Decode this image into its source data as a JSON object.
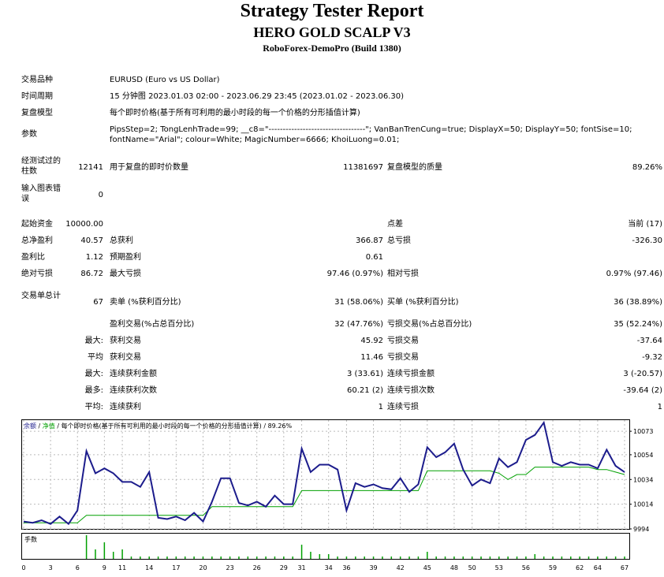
{
  "header": {
    "title": "Strategy Tester Report",
    "subtitle": "HERO GOLD SCALP V3",
    "build": "RoboForex-DemoPro (Build 1380)"
  },
  "info": {
    "symbol_label": "交易品种",
    "symbol_value": "EURUSD (Euro vs US Dollar)",
    "period_label": "时间周期",
    "period_value": "15 分钟图 2023.01.03 02:00 - 2023.06.29 23:45 (2023.01.02 - 2023.06.30)",
    "model_label": "复盘模型",
    "model_value": "每个即时价格(基于所有可利用的最小时段的每一个价格的分形插值计算)",
    "params_label": "参数",
    "params_value": "PipsStep=2; TongLenhTrade=99; __c8=\"----------------------------------\"; VanBanTrenCung=true; DisplayX=50; DisplayY=50; fontSise=10; fontName=\"Arial\"; colour=White; MagicNumber=6666; KhoiLuong=0.01;"
  },
  "stats": {
    "bars_label": "经测试过的柱数",
    "bars_value": "12141",
    "ticks_label": "用于复盘的即时价数量",
    "ticks_value": "11381697",
    "quality_label": "复盘模型的质量",
    "quality_value": "89.26%",
    "errors_label": "输入图表错误",
    "errors_value": "0",
    "deposit_label": "起始资金",
    "deposit_value": "10000.00",
    "spread_label": "点差",
    "spread_value": "当前 (17)",
    "net_label": "总净盈利",
    "net_value": "40.57",
    "gross_profit_label": "总获利",
    "gross_profit_value": "366.87",
    "gross_loss_label": "总亏损",
    "gross_loss_value": "-326.30",
    "pf_label": "盈利比",
    "pf_value": "1.12",
    "expected_label": "预期盈利",
    "expected_value": "0.61",
    "abs_dd_label": "绝对亏损",
    "abs_dd_value": "86.72",
    "max_dd_label": "最大亏损",
    "max_dd_value": "97.46 (0.97%)",
    "rel_dd_label": "相对亏损",
    "rel_dd_value": "0.97% (97.46)",
    "trades_label": "交易单总计",
    "trades_value": "67",
    "short_label": "卖单 (%获利百分比)",
    "short_value": "31 (58.06%)",
    "long_label": "买单 (%获利百分比)",
    "long_value": "36 (38.89%)",
    "profit_trades_label": "盈利交易(%占总百分比)",
    "profit_trades_value": "32 (47.76%)",
    "loss_trades_label": "亏损交易(%占总百分比)",
    "loss_trades_value": "35 (52.24%)",
    "largest_prefix": "最大:",
    "largest_profit_label": "获利交易",
    "largest_profit_value": "45.92",
    "largest_loss_label": "亏损交易",
    "largest_loss_value": "-37.64",
    "average_prefix": "平均",
    "average_profit_label": "获利交易",
    "average_profit_value": "11.46",
    "average_loss_label": "亏损交易",
    "average_loss_value": "-9.32",
    "max_consec_prefix": "最大:",
    "max_consec_wins_label": "连续获利金额",
    "max_consec_wins_value": "3 (33.61)",
    "max_consec_losses_label": "连续亏损金额",
    "max_consec_losses_value": "3 (-20.57)",
    "most_prefix": "最多:",
    "most_consec_profit_label": "连续获利次数",
    "most_consec_profit_value": "60.21 (2)",
    "most_consec_loss_label": "连续亏损次数",
    "most_consec_loss_value": "-39.64 (2)",
    "avg_consec_prefix": "平均:",
    "avg_consec_wins_label": "连续获利",
    "avg_consec_wins_value": "1",
    "avg_consec_losses_label": "连续亏损",
    "avg_consec_losses_value": "1"
  },
  "chart_data": {
    "type": "line",
    "legend_parts": [
      "余额",
      "净值",
      "每个即时价格(基于所有可利用的最小时段的每一个价格的分形插值计算)",
      "89.26%"
    ],
    "legend_colors": [
      "#1c1c8c",
      "#00a000",
      "#000000",
      "#000000"
    ],
    "lot_label": "手数",
    "ylim": [
      9994,
      10082
    ],
    "y_ticks": [
      9994,
      10014,
      10034,
      10054,
      10073
    ],
    "x_ticks": [
      0,
      3,
      6,
      9,
      11,
      14,
      17,
      20,
      23,
      26,
      29,
      31,
      34,
      36,
      39,
      42,
      45,
      48,
      50,
      53,
      56,
      59,
      62,
      64,
      67
    ],
    "x": [
      0,
      1,
      2,
      3,
      4,
      5,
      6,
      7,
      8,
      9,
      10,
      11,
      12,
      13,
      14,
      15,
      16,
      17,
      18,
      19,
      20,
      21,
      22,
      23,
      24,
      25,
      26,
      27,
      28,
      29,
      30,
      31,
      32,
      33,
      34,
      35,
      36,
      37,
      38,
      39,
      40,
      41,
      42,
      43,
      44,
      45,
      46,
      47,
      48,
      49,
      50,
      51,
      52,
      53,
      54,
      55,
      56,
      57,
      58,
      59,
      60,
      61,
      62,
      63,
      64,
      65,
      66,
      67
    ],
    "series": [
      {
        "name": "余额",
        "color": "#1c1c8c",
        "values": [
          10000,
          9999,
          10001,
          9998,
          10004,
          9998,
          10009,
          10057,
          10039,
          10043,
          10039,
          10032,
          10032,
          10028,
          10040,
          10003,
          10002,
          10004,
          10001,
          10007,
          10000,
          10016,
          10035,
          10035,
          10015,
          10013,
          10016,
          10012,
          10021,
          10014,
          10014,
          10059,
          10040,
          10046,
          10046,
          10042,
          10009,
          10031,
          10028,
          10030,
          10027,
          10026,
          10035,
          10024,
          10030,
          10060,
          10052,
          10056,
          10063,
          10042,
          10029,
          10034,
          10031,
          10051,
          10044,
          10048,
          10066,
          10070,
          10080,
          10048,
          10045,
          10048,
          10046,
          10046,
          10043,
          10058,
          10045,
          10040
        ],
        "equity": [
          9999,
          9999,
          9999,
          9999,
          9999,
          9999,
          9999,
          10005,
          10005,
          10005,
          10005,
          10005,
          10005,
          10005,
          10005,
          10005,
          10005,
          10005,
          10005,
          10005,
          10005,
          10012,
          10012,
          10012,
          10012,
          10012,
          10012,
          10012,
          10012,
          10012,
          10012,
          10025,
          10025,
          10025,
          10025,
          10025,
          10025,
          10025,
          10025,
          10025,
          10025,
          10025,
          10025,
          10025,
          10025,
          10041,
          10041,
          10041,
          10041,
          10041,
          10041,
          10041,
          10041,
          10039,
          10034,
          10038,
          10038,
          10044,
          10044,
          10044,
          10044,
          10044,
          10044,
          10044,
          10042,
          10042,
          10040,
          10038
        ]
      },
      {
        "name": "净值",
        "color": "#00a000",
        "values": [
          9999,
          9999,
          9999,
          9999,
          9999,
          9999,
          9999,
          10005,
          10005,
          10005,
          10005,
          10005,
          10005,
          10005,
          10005,
          10005,
          10005,
          10005,
          10005,
          10005,
          10005,
          10012,
          10012,
          10012,
          10012,
          10012,
          10012,
          10012,
          10012,
          10012,
          10012,
          10025,
          10025,
          10025,
          10025,
          10025,
          10025,
          10025,
          10025,
          10025,
          10025,
          10025,
          10025,
          10025,
          10025,
          10041,
          10041,
          10041,
          10041,
          10041,
          10041,
          10041,
          10041,
          10039,
          10034,
          10038,
          10038,
          10044,
          10044,
          10044,
          10044,
          10044,
          10044,
          10044,
          10042,
          10042,
          10040,
          10038
        ]
      }
    ],
    "lots": [
      0,
      0,
      0,
      0,
      0,
      0,
      0,
      0.1,
      0.04,
      0.07,
      0.03,
      0.04,
      0.01,
      0.01,
      0.01,
      0.01,
      0.01,
      0.01,
      0.01,
      0.01,
      0.01,
      0.01,
      0.01,
      0.01,
      0.01,
      0.01,
      0.01,
      0.01,
      0.01,
      0.01,
      0.01,
      0.06,
      0.03,
      0.02,
      0.02,
      0.01,
      0.01,
      0.01,
      0.01,
      0.01,
      0.01,
      0.01,
      0.01,
      0.01,
      0.01,
      0.03,
      0.01,
      0.01,
      0.01,
      0.01,
      0.01,
      0.01,
      0.01,
      0.01,
      0.01,
      0.01,
      0.01,
      0.02,
      0.01,
      0.01,
      0.01,
      0.01,
      0.01,
      0.01,
      0.01,
      0.01,
      0.01,
      0.01
    ],
    "grid": true
  }
}
